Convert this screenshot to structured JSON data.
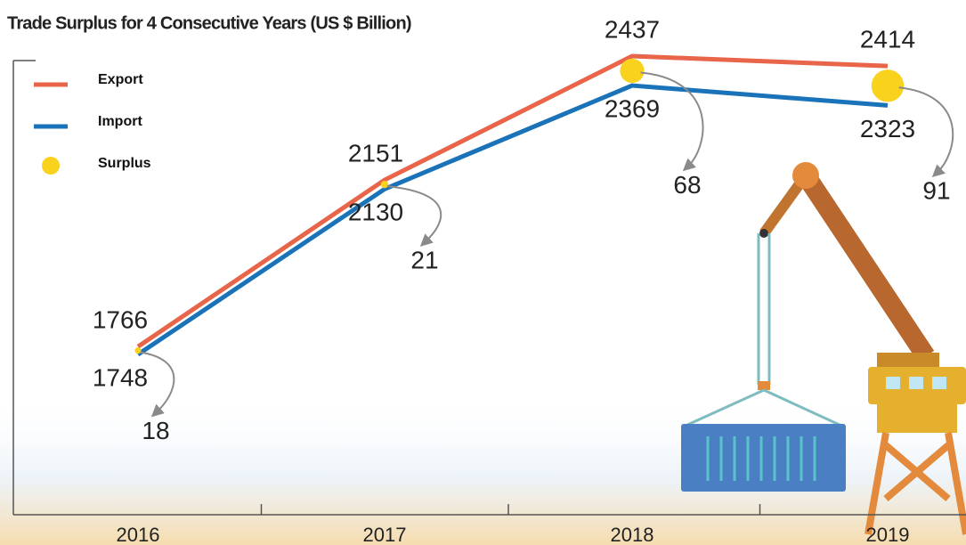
{
  "chart_data": {
    "type": "line",
    "title": "Trade Surplus for 4 Consecutive Years (US $ Billion)",
    "categories": [
      "2016",
      "2017",
      "2018",
      "2019"
    ],
    "series": [
      {
        "name": "Export",
        "type": "line",
        "color": "#e8654a",
        "values": [
          1766,
          2151,
          2437,
          2414
        ]
      },
      {
        "name": "Import",
        "type": "line",
        "color": "#1a73b8",
        "values": [
          1748,
          2130,
          2369,
          2323
        ]
      },
      {
        "name": "Surplus",
        "type": "bubble",
        "color": "#f9d21e",
        "values": [
          18,
          21,
          68,
          91
        ]
      }
    ]
  }
}
